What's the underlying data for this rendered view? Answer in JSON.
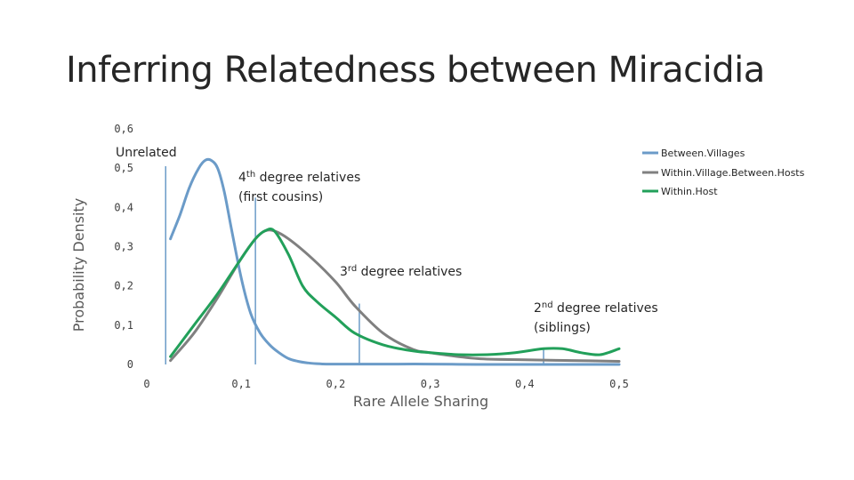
{
  "slide": {
    "title": "Inferring Relatedness between Miracidia"
  },
  "chart_data": {
    "type": "line",
    "title": "",
    "xlabel": "Rare Allele Sharing",
    "ylabel": "Probability Density",
    "xlim": [
      0,
      0.5
    ],
    "ylim": [
      0,
      0.6
    ],
    "x_ticks": [
      0,
      0.1,
      0.2,
      0.3,
      0.4,
      0.5
    ],
    "x_tick_labels": [
      "0",
      "0,1",
      "0,2",
      "0,3",
      "0,4",
      "0,5"
    ],
    "y_ticks": [
      0,
      0.1,
      0.2,
      0.3,
      0.4,
      0.5,
      0.6
    ],
    "y_tick_labels": [
      "0",
      "0,1",
      "0,2",
      "0,3",
      "0,4",
      "0,5",
      "0,6"
    ],
    "legend_position": "top-right",
    "series": [
      {
        "name": "Between.Villages",
        "color": "#6b9bc8",
        "x": [
          0.025,
          0.035,
          0.045,
          0.055,
          0.062,
          0.068,
          0.075,
          0.082,
          0.09,
          0.1,
          0.11,
          0.12,
          0.13,
          0.14,
          0.15,
          0.16,
          0.17,
          0.18,
          0.19,
          0.2,
          0.25,
          0.3,
          0.35,
          0.4,
          0.45,
          0.5
        ],
        "y": [
          0.32,
          0.38,
          0.45,
          0.5,
          0.52,
          0.52,
          0.5,
          0.44,
          0.34,
          0.22,
          0.13,
          0.08,
          0.05,
          0.03,
          0.015,
          0.008,
          0.004,
          0.002,
          0.001,
          0.001,
          0.001,
          0.001,
          0.0,
          0.0,
          0.0,
          0.0
        ]
      },
      {
        "name": "Within.Village.Between.Hosts",
        "color": "#808080",
        "x": [
          0.025,
          0.05,
          0.075,
          0.1,
          0.115,
          0.125,
          0.135,
          0.15,
          0.175,
          0.2,
          0.22,
          0.25,
          0.28,
          0.3,
          0.35,
          0.4,
          0.45,
          0.5
        ],
        "y": [
          0.01,
          0.08,
          0.17,
          0.27,
          0.32,
          0.34,
          0.34,
          0.32,
          0.27,
          0.21,
          0.15,
          0.08,
          0.04,
          0.03,
          0.015,
          0.012,
          0.01,
          0.008
        ]
      },
      {
        "name": "Within.Host",
        "color": "#22a05a",
        "x": [
          0.025,
          0.05,
          0.075,
          0.1,
          0.115,
          0.125,
          0.135,
          0.15,
          0.165,
          0.18,
          0.2,
          0.22,
          0.25,
          0.28,
          0.3,
          0.33,
          0.36,
          0.39,
          0.42,
          0.44,
          0.46,
          0.48,
          0.5
        ],
        "y": [
          0.02,
          0.1,
          0.18,
          0.27,
          0.32,
          0.34,
          0.34,
          0.28,
          0.2,
          0.16,
          0.12,
          0.08,
          0.05,
          0.035,
          0.03,
          0.025,
          0.025,
          0.03,
          0.04,
          0.04,
          0.03,
          0.025,
          0.04
        ]
      }
    ],
    "reference_lines": [
      {
        "x": 0.02,
        "y_top": 0.505
      },
      {
        "x": 0.115,
        "y_top": 0.425
      },
      {
        "x": 0.225,
        "y_top": 0.155
      },
      {
        "x": 0.42,
        "y_top": 0.04
      }
    ],
    "annotations": [
      {
        "id": "unrelated",
        "lines": [
          "Unrelated"
        ],
        "sup": ""
      },
      {
        "id": "fourth",
        "lines": [
          "4th degree relatives",
          "(first cousins)"
        ],
        "base": "4",
        "sup": "th",
        "rest": " degree relatives",
        "line2": "(first cousins)"
      },
      {
        "id": "third",
        "base": "3",
        "sup": "rd",
        "rest": " degree relatives"
      },
      {
        "id": "second",
        "base": "2",
        "sup": "nd",
        "rest": " degree relatives",
        "line2": "(siblings)"
      }
    ]
  }
}
